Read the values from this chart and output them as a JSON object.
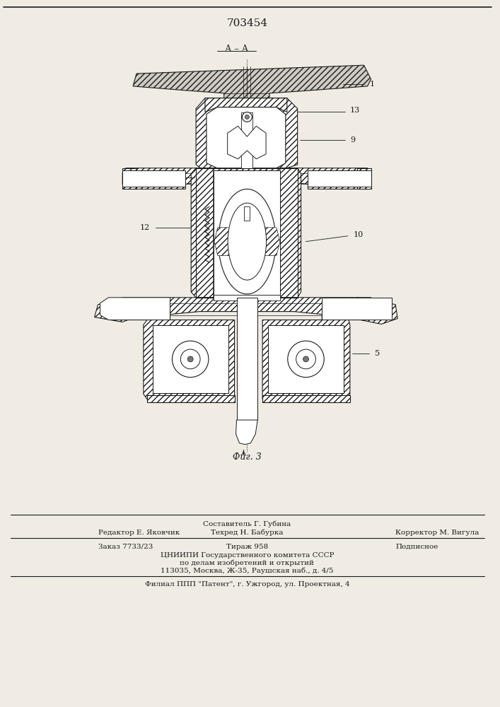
{
  "title": "703454",
  "fig_label": "Фиг. 3",
  "section_label": "А – А",
  "bg_color": "#f0ece4",
  "line_color": "#1a1a1a",
  "footer_lines": [
    "Составитель Г. Губина",
    "Редактор Е. Яковчик",
    "Техред Н. Бабурка",
    "Корректор М. Вигула",
    "Заказ 7733/23",
    "Тираж 958",
    "Подписное",
    "ЦНИИПИ Государственного комитета СССР",
    "по делам изобретений и открытий",
    "113035, Москва, Ж-35, Раушская наб., д. 4/5",
    "Филиал ППП \"Патент\", г. Ужгород, ул. Проектная, 4"
  ]
}
